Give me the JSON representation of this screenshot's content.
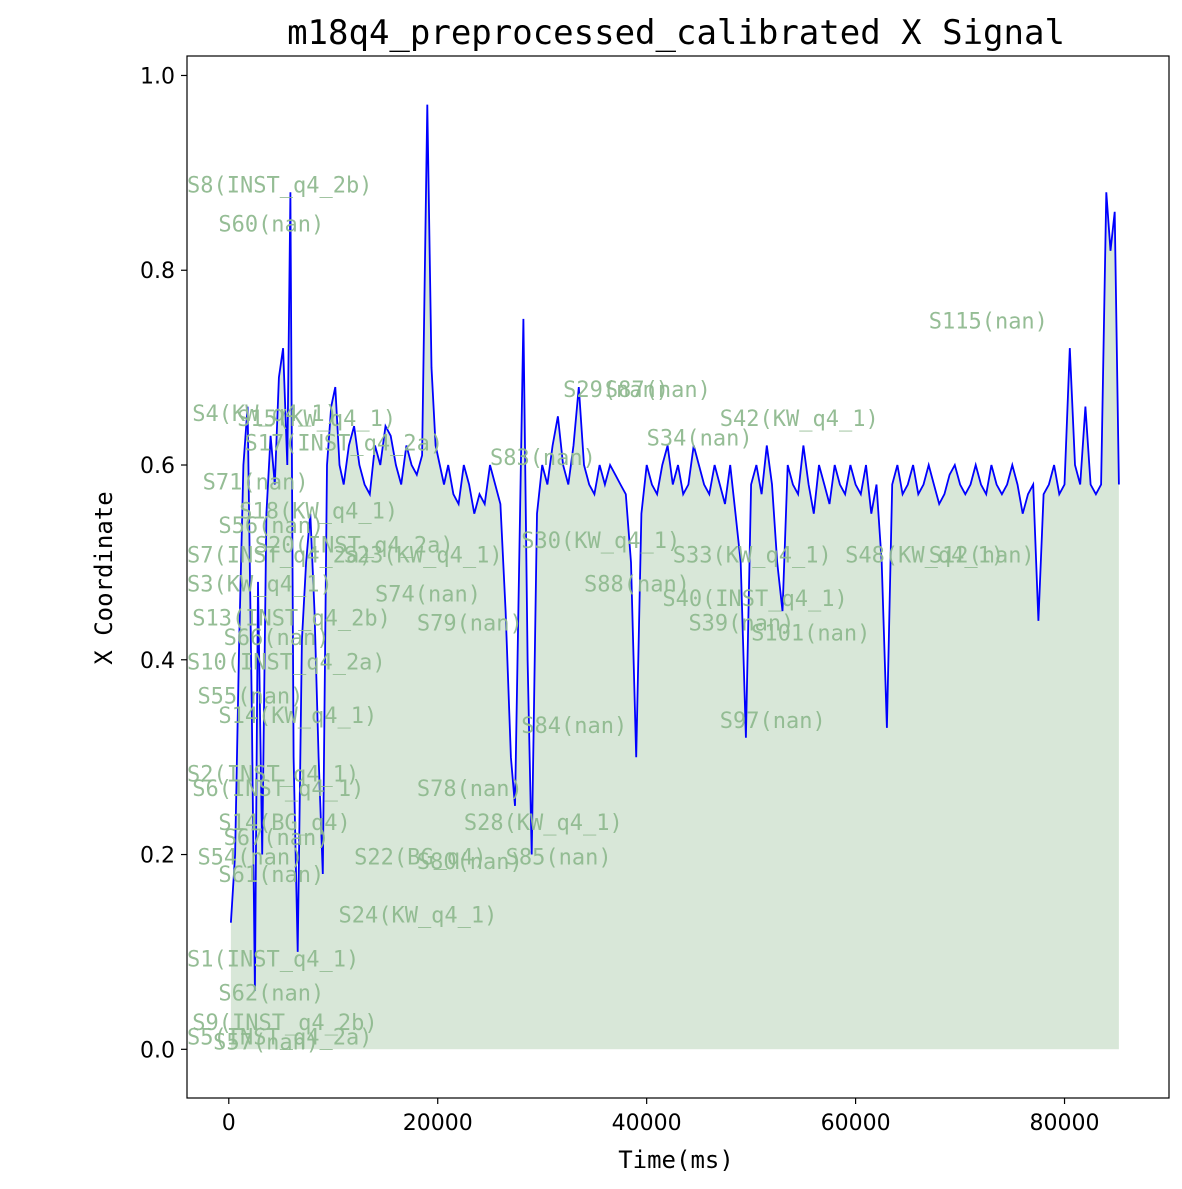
{
  "chart_data": {
    "type": "line",
    "title": "m18q4_preprocessed_calibrated X Signal",
    "xlabel": "Time(ms)",
    "ylabel": "X Coordinate",
    "xlim": [
      -4000,
      90000
    ],
    "ylim": [
      -0.05,
      1.02
    ],
    "xticks": [
      0,
      20000,
      40000,
      60000,
      80000
    ],
    "yticks": [
      0.0,
      0.2,
      0.4,
      0.6,
      0.8,
      1.0
    ],
    "ytick_labels": [
      "0.0",
      "0.2",
      "0.4",
      "0.6",
      "0.8",
      "1.0"
    ],
    "colors": {
      "line": "#0000ff",
      "fill": "#8fb98f",
      "annotation": "#8fb98f"
    },
    "series": [
      {
        "x": [
          200,
          600,
          1000,
          1400,
          1800,
          2200,
          2500,
          2800,
          3200,
          3600,
          4000,
          4400,
          4800,
          5200,
          5600,
          5900,
          6200,
          6600,
          7000,
          7400,
          7800,
          8200,
          8600,
          9000,
          9400,
          9800,
          10200,
          10600,
          11000,
          11500,
          12000,
          12500,
          13000,
          13500,
          14000,
          14500,
          15000,
          15500,
          16000,
          16500,
          17000,
          17500,
          18000,
          18500,
          19000,
          19400,
          19800,
          20200,
          20600,
          21000,
          21500,
          22000,
          22500,
          23000,
          23500,
          24000,
          24500,
          25000,
          25500,
          26000,
          26500,
          27000,
          27400,
          27800,
          28200,
          28600,
          29000,
          29500,
          30000,
          30500,
          31000,
          31500,
          32000,
          32500,
          33000,
          33500,
          34000,
          34500,
          35000,
          35500,
          36000,
          36500,
          37000,
          37500,
          38000,
          38500,
          39000,
          39500,
          40000,
          40500,
          41000,
          41500,
          42000,
          42500,
          43000,
          43500,
          44000,
          44500,
          45000,
          45500,
          46000,
          46500,
          47000,
          47500,
          48000,
          48500,
          49000,
          49500,
          50000,
          50500,
          51000,
          51500,
          52000,
          52500,
          53000,
          53500,
          54000,
          54500,
          55000,
          55500,
          56000,
          56500,
          57000,
          57500,
          58000,
          58500,
          59000,
          59500,
          60000,
          60500,
          61000,
          61500,
          62000,
          62500,
          63000,
          63500,
          64000,
          64500,
          65000,
          65500,
          66000,
          66500,
          67000,
          67500,
          68000,
          68500,
          69000,
          69500,
          70000,
          70500,
          71000,
          71500,
          72000,
          72500,
          73000,
          73500,
          74000,
          74500,
          75000,
          75500,
          76000,
          76500,
          77000,
          77500,
          78000,
          78500,
          79000,
          79500,
          80000,
          80500,
          81000,
          81500,
          82000,
          82500,
          83000,
          83500,
          84000,
          84400,
          84800,
          85200
        ],
        "y": [
          0.13,
          0.2,
          0.42,
          0.6,
          0.66,
          0.35,
          0.06,
          0.48,
          0.2,
          0.55,
          0.63,
          0.58,
          0.69,
          0.72,
          0.6,
          0.88,
          0.3,
          0.1,
          0.42,
          0.5,
          0.55,
          0.45,
          0.3,
          0.18,
          0.6,
          0.66,
          0.68,
          0.6,
          0.58,
          0.62,
          0.64,
          0.6,
          0.58,
          0.57,
          0.62,
          0.6,
          0.64,
          0.63,
          0.6,
          0.58,
          0.62,
          0.6,
          0.59,
          0.61,
          0.97,
          0.7,
          0.62,
          0.6,
          0.58,
          0.6,
          0.57,
          0.56,
          0.6,
          0.58,
          0.55,
          0.57,
          0.56,
          0.6,
          0.58,
          0.56,
          0.45,
          0.3,
          0.25,
          0.5,
          0.75,
          0.4,
          0.2,
          0.55,
          0.6,
          0.58,
          0.62,
          0.65,
          0.6,
          0.58,
          0.62,
          0.68,
          0.6,
          0.58,
          0.57,
          0.6,
          0.58,
          0.6,
          0.59,
          0.58,
          0.57,
          0.5,
          0.3,
          0.55,
          0.6,
          0.58,
          0.57,
          0.6,
          0.62,
          0.58,
          0.6,
          0.57,
          0.58,
          0.62,
          0.6,
          0.58,
          0.57,
          0.6,
          0.58,
          0.56,
          0.6,
          0.55,
          0.5,
          0.32,
          0.58,
          0.6,
          0.57,
          0.62,
          0.58,
          0.5,
          0.45,
          0.6,
          0.58,
          0.57,
          0.62,
          0.58,
          0.55,
          0.6,
          0.58,
          0.56,
          0.6,
          0.58,
          0.57,
          0.6,
          0.58,
          0.57,
          0.6,
          0.55,
          0.58,
          0.5,
          0.33,
          0.58,
          0.6,
          0.57,
          0.58,
          0.6,
          0.57,
          0.58,
          0.6,
          0.58,
          0.56,
          0.57,
          0.59,
          0.6,
          0.58,
          0.57,
          0.58,
          0.6,
          0.58,
          0.57,
          0.6,
          0.58,
          0.57,
          0.58,
          0.6,
          0.58,
          0.55,
          0.57,
          0.58,
          0.44,
          0.57,
          0.58,
          0.6,
          0.57,
          0.58,
          0.72,
          0.6,
          0.58,
          0.66,
          0.58,
          0.57,
          0.58,
          0.88,
          0.82,
          0.86,
          0.58
        ]
      }
    ],
    "annotations": [
      {
        "text": "S8(INST_q4_2b)",
        "x": -4000,
        "y": 0.88
      },
      {
        "text": "S60(nan)",
        "x": -1000,
        "y": 0.84
      },
      {
        "text": "S115(nan)",
        "x": 67000,
        "y": 0.74
      },
      {
        "text": "S29(nan)",
        "x": 32000,
        "y": 0.67
      },
      {
        "text": "S87(nan)",
        "x": 36000,
        "y": 0.67
      },
      {
        "text": "S4(KW_q4_1)",
        "x": -3500,
        "y": 0.645
      },
      {
        "text": "S15(KW_q4_1)",
        "x": 800,
        "y": 0.64
      },
      {
        "text": "S42(KW_q4_1)",
        "x": 47000,
        "y": 0.64
      },
      {
        "text": "S17(INST_q4_2a)",
        "x": 1500,
        "y": 0.615
      },
      {
        "text": "S34(nan)",
        "x": 40000,
        "y": 0.62
      },
      {
        "text": "S83(nan)",
        "x": 25000,
        "y": 0.6
      },
      {
        "text": "S71(nan)",
        "x": -2500,
        "y": 0.575
      },
      {
        "text": "S56(nan)",
        "x": -1000,
        "y": 0.53
      },
      {
        "text": "S18(KW_q4_1)",
        "x": 1000,
        "y": 0.545
      },
      {
        "text": "S30(KW_q4_1)",
        "x": 28000,
        "y": 0.515
      },
      {
        "text": "S7(INST_q4_2a)",
        "x": -4000,
        "y": 0.5
      },
      {
        "text": "S20(INST_q4_2a)",
        "x": 2500,
        "y": 0.51
      },
      {
        "text": "S23(KW_q4_1)",
        "x": 11000,
        "y": 0.5
      },
      {
        "text": "S33(KW_q4_1)",
        "x": 42500,
        "y": 0.5
      },
      {
        "text": "S48(KW_q4_1)",
        "x": 59000,
        "y": 0.5
      },
      {
        "text": "S12(nan)",
        "x": 67000,
        "y": 0.5
      },
      {
        "text": "S88(nan)",
        "x": 34000,
        "y": 0.47
      },
      {
        "text": "S40(INST_q4_1)",
        "x": 41500,
        "y": 0.455
      },
      {
        "text": "S3(KW_q4_1)",
        "x": -4000,
        "y": 0.47
      },
      {
        "text": "S74(nan)",
        "x": 14000,
        "y": 0.46
      },
      {
        "text": "S13(INST_q4_2b)",
        "x": -3500,
        "y": 0.435
      },
      {
        "text": "S79(nan)",
        "x": 18000,
        "y": 0.43
      },
      {
        "text": "S39(nan)",
        "x": 44000,
        "y": 0.43
      },
      {
        "text": "S101(nan)",
        "x": 50000,
        "y": 0.42
      },
      {
        "text": "S66(nan)",
        "x": -500,
        "y": 0.415
      },
      {
        "text": "S10(INST_q4_2a)",
        "x": -4000,
        "y": 0.39
      },
      {
        "text": "S55(nan)",
        "x": -3000,
        "y": 0.355
      },
      {
        "text": "S14(KW_q4_1)",
        "x": -1000,
        "y": 0.335
      },
      {
        "text": "S84(nan)",
        "x": 28000,
        "y": 0.325
      },
      {
        "text": "S97(nan)",
        "x": 47000,
        "y": 0.33
      },
      {
        "text": "S2(INST_q4_1)",
        "x": -4000,
        "y": 0.275
      },
      {
        "text": "S6(INST_q4_1)",
        "x": -3500,
        "y": 0.26
      },
      {
        "text": "S78(nan)",
        "x": 18000,
        "y": 0.26
      },
      {
        "text": "S14(BG_q4)",
        "x": -1000,
        "y": 0.225
      },
      {
        "text": "S28(KW_q4_1)",
        "x": 22500,
        "y": 0.225
      },
      {
        "text": "S67(nan)",
        "x": -500,
        "y": 0.21
      },
      {
        "text": "S54(nan)",
        "x": -3000,
        "y": 0.19
      },
      {
        "text": "S22(BG_q4)",
        "x": 12000,
        "y": 0.19
      },
      {
        "text": "S80(nan)",
        "x": 18000,
        "y": 0.185
      },
      {
        "text": "S85(nan)",
        "x": 26500,
        "y": 0.19
      },
      {
        "text": "S61(nan)",
        "x": -1000,
        "y": 0.172
      },
      {
        "text": "S24(KW_q4_1)",
        "x": 10500,
        "y": 0.13
      },
      {
        "text": "S1(INST_q4_1)",
        "x": -4000,
        "y": 0.085
      },
      {
        "text": "S62(nan)",
        "x": -1000,
        "y": 0.05
      },
      {
        "text": "S9(INST_q4_2b)",
        "x": -3500,
        "y": 0.02
      },
      {
        "text": "S5(INST_q4_2a)",
        "x": -4000,
        "y": 0.005
      },
      {
        "text": "S57(nan)",
        "x": -1500,
        "y": 0.0
      }
    ]
  }
}
